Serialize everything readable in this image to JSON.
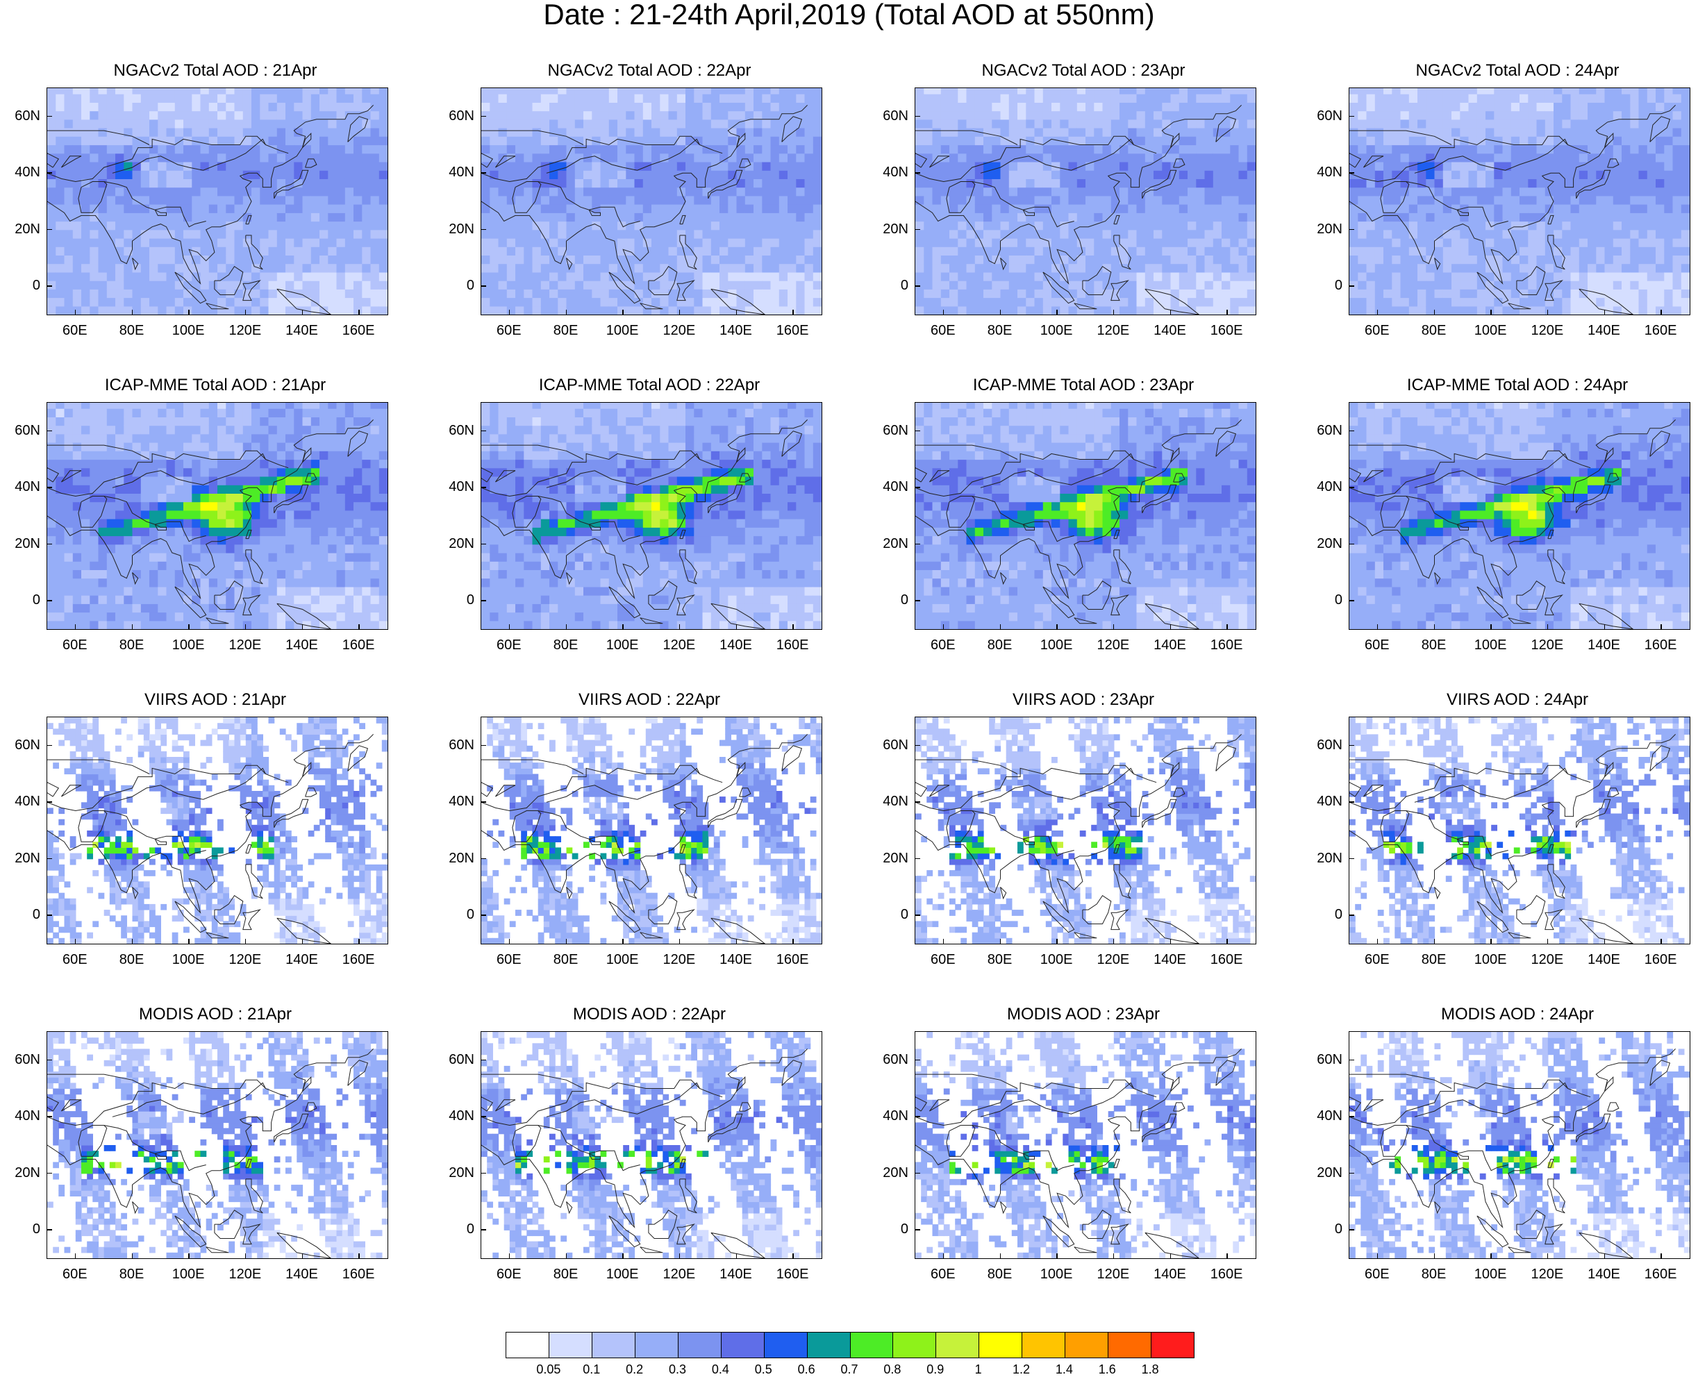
{
  "title": "Date : 21-24th April,2019 (Total AOD at 550nm)",
  "panels": [
    {
      "title": "NGACv2 Total AOD : 21Apr",
      "type": "model"
    },
    {
      "title": "NGACv2 Total AOD : 22Apr",
      "type": "model"
    },
    {
      "title": "NGACv2 Total AOD : 23Apr",
      "type": "model"
    },
    {
      "title": "NGACv2 Total AOD : 24Apr",
      "type": "model"
    },
    {
      "title": "ICAP-MME Total AOD : 21Apr",
      "type": "ensemble"
    },
    {
      "title": "ICAP-MME Total AOD : 22Apr",
      "type": "ensemble"
    },
    {
      "title": "ICAP-MME Total AOD : 23Apr",
      "type": "ensemble"
    },
    {
      "title": "ICAP-MME Total AOD : 24Apr",
      "type": "ensemble"
    },
    {
      "title": "VIIRS AOD : 21Apr",
      "type": "satellite"
    },
    {
      "title": "VIIRS AOD : 22Apr",
      "type": "satellite"
    },
    {
      "title": "VIIRS AOD : 23Apr",
      "type": "satellite"
    },
    {
      "title": "VIIRS AOD : 24Apr",
      "type": "satellite"
    },
    {
      "title": "MODIS AOD : 21Apr",
      "type": "satellite"
    },
    {
      "title": "MODIS AOD : 22Apr",
      "type": "satellite"
    },
    {
      "title": "MODIS AOD : 23Apr",
      "type": "satellite"
    },
    {
      "title": "MODIS AOD : 24Apr",
      "type": "satellite"
    }
  ],
  "axes": {
    "lon_range": [
      50,
      170
    ],
    "lat_range": [
      -10,
      70
    ],
    "lon_ticks": [
      "60E",
      "80E",
      "100E",
      "120E",
      "140E",
      "160E"
    ],
    "lon_tick_values": [
      60,
      80,
      100,
      120,
      140,
      160
    ],
    "lat_ticks": [
      "60N",
      "40N",
      "20N",
      "0"
    ],
    "lat_tick_values": [
      60,
      40,
      20,
      0
    ]
  },
  "colorbar": {
    "labels": [
      "0.05",
      "0.1",
      "0.2",
      "0.3",
      "0.4",
      "0.5",
      "0.6",
      "0.7",
      "0.8",
      "0.9",
      "1",
      "1.2",
      "1.4",
      "1.6",
      "1.8"
    ],
    "colors": [
      "#ffffff",
      "#d5deff",
      "#b4c3fb",
      "#96aef8",
      "#7c93f0",
      "#5f6ee8",
      "#1f5ef0",
      "#0a9a9a",
      "#4dec26",
      "#8ef21a",
      "#c6f23a",
      "#ffff00",
      "#ffc400",
      "#ff9f00",
      "#ff6a00",
      "#ff1c1c"
    ]
  }
}
